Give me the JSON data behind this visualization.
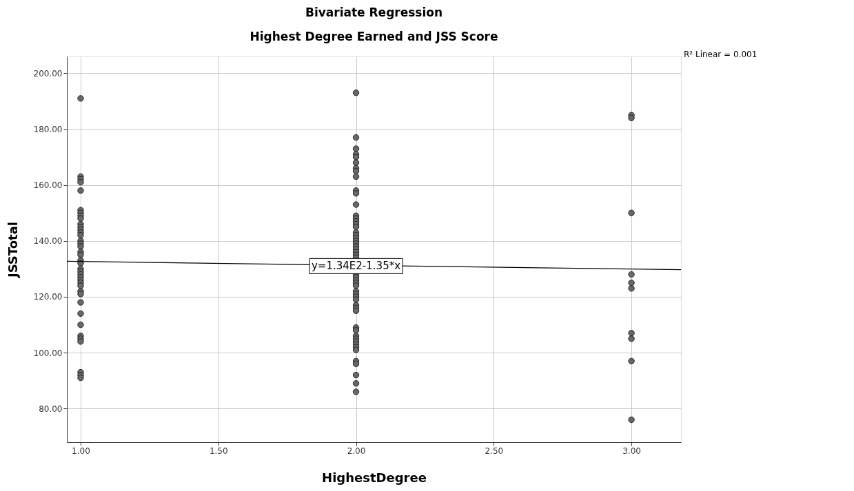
{
  "chart_data": {
    "type": "scatter",
    "title": "Bivariate Regression",
    "subtitle": "Highest Degree Earned and JSS Score",
    "xlabel": "HighestDegree",
    "ylabel": "JSSTotal",
    "series": [
      {
        "type": "scatter",
        "marker": "circle",
        "color": "#686868",
        "x": [
          1,
          1,
          1,
          1,
          1,
          1,
          1,
          1,
          1,
          1,
          1,
          1,
          1,
          1,
          1,
          1,
          1,
          1,
          1,
          1,
          1,
          1,
          1,
          1,
          1,
          1,
          1,
          1,
          1,
          1,
          1,
          1,
          1,
          1,
          1,
          1,
          1,
          1,
          1,
          2,
          2,
          2,
          2,
          2,
          2,
          2,
          2,
          2,
          2,
          2,
          2,
          2,
          2,
          2,
          2,
          2,
          2,
          2,
          2,
          2,
          2,
          2,
          2,
          2,
          2,
          2,
          2,
          2,
          2,
          2,
          2,
          2,
          2,
          2,
          2,
          2,
          2,
          2,
          2,
          2,
          2,
          2,
          2,
          2,
          2,
          2,
          2,
          2,
          2,
          2,
          2,
          3,
          3,
          3,
          3,
          3,
          3,
          3,
          3,
          3,
          3
        ],
        "values": [
          191,
          163,
          162,
          161,
          158,
          151,
          150,
          149,
          148,
          146,
          145,
          144,
          143,
          142,
          140,
          139,
          138,
          136,
          135,
          133,
          132,
          130,
          129,
          128,
          127,
          126,
          125,
          124,
          122,
          121,
          118,
          114,
          110,
          106,
          105,
          104,
          93,
          92,
          91,
          193,
          177,
          173,
          171,
          170,
          168,
          166,
          165,
          163,
          158,
          157,
          153,
          149,
          148,
          147,
          146,
          145,
          143,
          142,
          141,
          140,
          139,
          138,
          137,
          136,
          135,
          134,
          128,
          127,
          126,
          125,
          124,
          122,
          121,
          120,
          119,
          117,
          116,
          115,
          109,
          108,
          106,
          105,
          104,
          103,
          102,
          101,
          97,
          96,
          92,
          89,
          86,
          185,
          184,
          150,
          128,
          125,
          123,
          107,
          105,
          97,
          76
        ]
      },
      {
        "type": "line",
        "marker": "none",
        "color": "#000000",
        "x": [
          0.95,
          3.18
        ],
        "values": [
          132.7,
          129.7
        ]
      }
    ],
    "xlim": [
      0.95,
      3.18
    ],
    "xticks": [
      {
        "value": 1,
        "label": "1.00"
      },
      {
        "value": 1.5,
        "label": "1.50"
      },
      {
        "value": 2,
        "label": "2.00"
      },
      {
        "value": 2.5,
        "label": "2.50"
      },
      {
        "value": 3,
        "label": "3.00"
      }
    ],
    "ylim": [
      68,
      206
    ],
    "yticks": [
      {
        "value": 80,
        "label": "80.00"
      },
      {
        "value": 100,
        "label": "100.00"
      },
      {
        "value": 120,
        "label": "120.00"
      },
      {
        "value": 140,
        "label": "140.00"
      },
      {
        "value": 160,
        "label": "160.00"
      },
      {
        "value": 180,
        "label": "180.00"
      },
      {
        "value": 200,
        "label": "200.00"
      }
    ],
    "grid": true,
    "annotations": [
      "R² Linear = 0.001",
      {
        "text": "y=1.34E2-1.35*x",
        "x": 2,
        "y": 131
      }
    ]
  }
}
